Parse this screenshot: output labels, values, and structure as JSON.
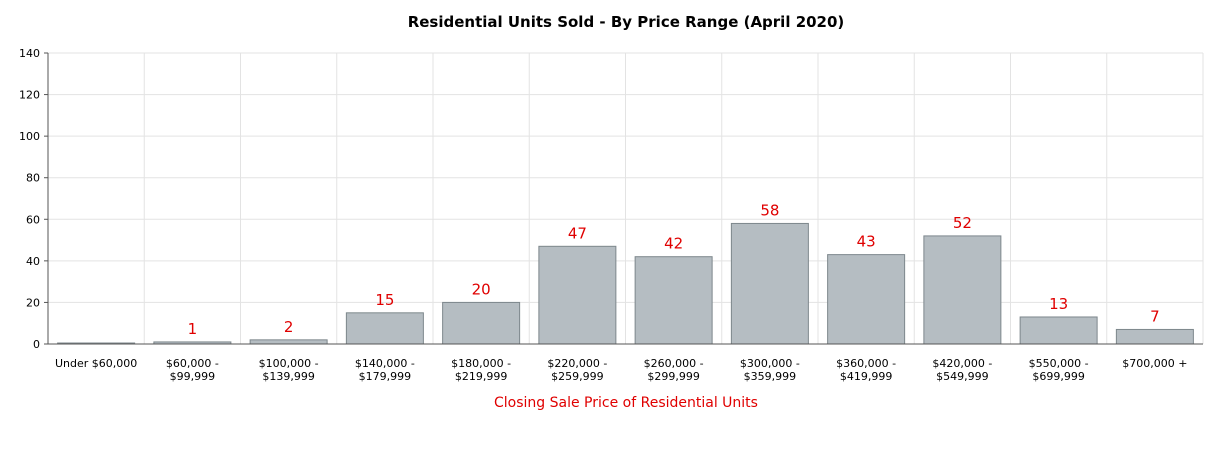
{
  "chart_data": {
    "type": "bar",
    "title": "Residential Units Sold - By Price Range (April 2020)",
    "xlabel": "Closing Sale Price of Residential Units",
    "ylabel": "",
    "ylim": [
      0,
      140
    ],
    "yticks": [
      "0",
      "20",
      "40",
      "60",
      "80",
      "100",
      "120",
      "140"
    ],
    "grid": true,
    "categories": [
      [
        "Under $60,000"
      ],
      [
        "$60,000 -",
        "$99,999"
      ],
      [
        "$100,000 -",
        "$139,999"
      ],
      [
        "$140,000 -",
        "$179,999"
      ],
      [
        "$180,000 -",
        "$219,999"
      ],
      [
        "$220,000 -",
        "$259,999"
      ],
      [
        "$260,000 -",
        "$299,999"
      ],
      [
        "$300,000 -",
        "$359,999"
      ],
      [
        "$360,000 -",
        "$419,999"
      ],
      [
        "$420,000 -",
        "$549,999"
      ],
      [
        "$550,000 -",
        "$699,999"
      ],
      [
        "$700,000 +"
      ]
    ],
    "values": [
      0,
      1,
      2,
      15,
      20,
      47,
      42,
      58,
      43,
      52,
      13,
      7
    ],
    "data_labels": [
      "",
      "1",
      "2",
      "15",
      "20",
      "47",
      "42",
      "58",
      "43",
      "52",
      "13",
      "7"
    ],
    "colors": {
      "bar_fill": "#b5bdc2",
      "bar_stroke": "#7d878c",
      "grid": "#e3e3e3",
      "axis": "#555555",
      "data_label": "#e00000",
      "xlabel": "#e00000",
      "title": "#000000"
    }
  }
}
